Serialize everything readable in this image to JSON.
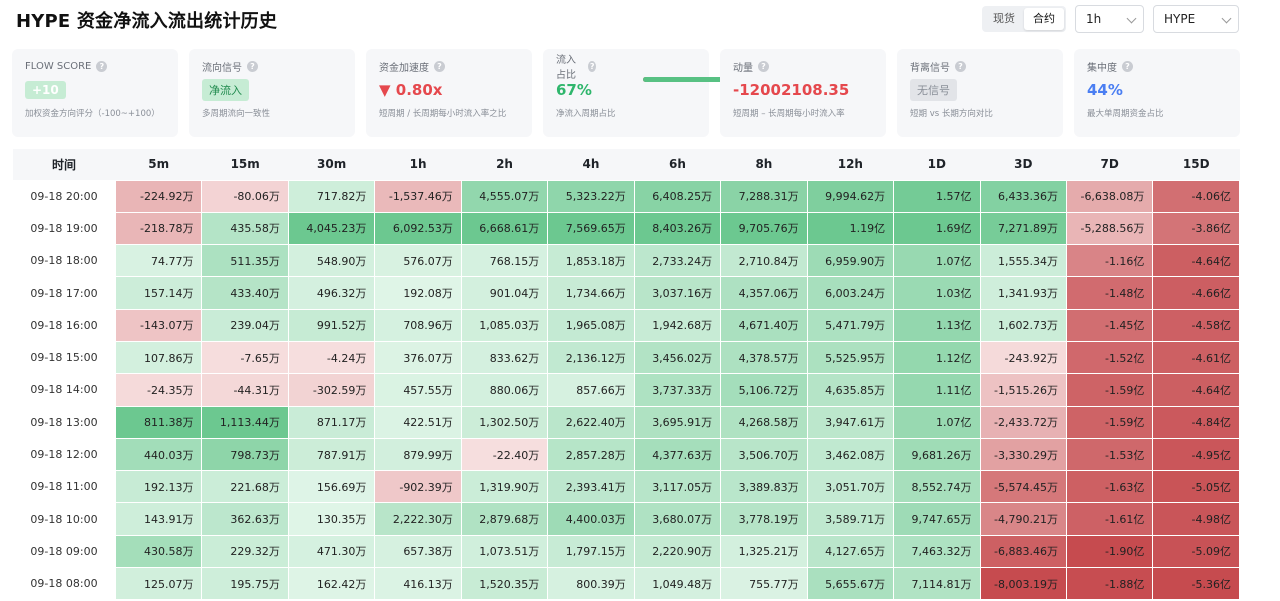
{
  "title": "HYPE 资金净流入流出统计历史",
  "segment": {
    "options": [
      "现货",
      "合约"
    ],
    "active": "合约"
  },
  "interval": "1h",
  "symbol": "HYPE",
  "cards": {
    "flow_score": {
      "title": "FLOW SCORE",
      "value": "+10",
      "sub": "加权资金方向评分（-100~+100）"
    },
    "flow_signal": {
      "title": "流向信号",
      "value": "净流入",
      "sub": "多周期流向一致性"
    },
    "acceleration": {
      "title": "资金加速度",
      "value": "▼ 0.80x",
      "sub": "短周期 / 长周期每小时流入率之比"
    },
    "inflow_ratio": {
      "title": "流入占比",
      "value": "67%",
      "sub": "净流入周期占比",
      "ratio": 0.67
    },
    "momentum": {
      "title": "动量",
      "value": "-12002108.35",
      "sub": "短周期 – 长周期每小时流入率"
    },
    "divergence": {
      "title": "背离信号",
      "value": "无信号",
      "sub": "短期 vs 长期方向对比"
    },
    "concentration": {
      "title": "集中度",
      "value": "44%",
      "sub": "最大单周期资金占比"
    }
  },
  "colors": {
    "positive_light": "#e3f6ea",
    "positive_strong": "#6cc890",
    "negative_light": "#f6dede",
    "negative_strong": "#c64b4f"
  },
  "table": {
    "headers": [
      "时间",
      "5m",
      "15m",
      "30m",
      "1h",
      "2h",
      "4h",
      "6h",
      "8h",
      "12h",
      "1D",
      "3D",
      "7D",
      "15D"
    ],
    "rows": [
      [
        "09-18 20:00",
        "-224.92万",
        "-80.06万",
        "717.82万",
        "-1,537.46万",
        "4,555.07万",
        "5,323.22万",
        "6,408.25万",
        "7,288.31万",
        "9,994.62万",
        "1.57亿",
        "6,433.36万",
        "-6,638.08万",
        "-4.06亿"
      ],
      [
        "09-18 19:00",
        "-218.78万",
        "435.58万",
        "4,045.23万",
        "6,092.53万",
        "6,668.61万",
        "7,569.65万",
        "8,403.26万",
        "9,705.76万",
        "1.19亿",
        "1.69亿",
        "7,271.89万",
        "-5,288.56万",
        "-3.86亿"
      ],
      [
        "09-18 18:00",
        "74.77万",
        "511.35万",
        "548.90万",
        "576.07万",
        "768.15万",
        "1,853.18万",
        "2,733.24万",
        "2,710.84万",
        "6,959.90万",
        "1.07亿",
        "1,555.34万",
        "-1.16亿",
        "-4.64亿"
      ],
      [
        "09-18 17:00",
        "157.14万",
        "433.40万",
        "496.32万",
        "192.08万",
        "901.04万",
        "1,734.66万",
        "3,037.16万",
        "4,357.06万",
        "6,003.24万",
        "1.03亿",
        "1,341.93万",
        "-1.48亿",
        "-4.66亿"
      ],
      [
        "09-18 16:00",
        "-143.07万",
        "239.04万",
        "991.52万",
        "708.96万",
        "1,085.03万",
        "1,965.08万",
        "1,942.68万",
        "4,671.40万",
        "5,471.79万",
        "1.13亿",
        "1,602.73万",
        "-1.45亿",
        "-4.58亿"
      ],
      [
        "09-18 15:00",
        "107.86万",
        "-7.65万",
        "-4.24万",
        "376.07万",
        "833.62万",
        "2,136.12万",
        "3,456.02万",
        "4,378.57万",
        "5,525.95万",
        "1.12亿",
        "-243.92万",
        "-1.52亿",
        "-4.61亿"
      ],
      [
        "09-18 14:00",
        "-24.35万",
        "-44.31万",
        "-302.59万",
        "457.55万",
        "880.06万",
        "857.66万",
        "3,737.33万",
        "5,106.72万",
        "4,635.85万",
        "1.11亿",
        "-1,515.26万",
        "-1.59亿",
        "-4.64亿"
      ],
      [
        "09-18 13:00",
        "811.38万",
        "1,113.44万",
        "871.17万",
        "422.51万",
        "1,302.50万",
        "2,622.40万",
        "3,695.91万",
        "4,268.58万",
        "3,947.61万",
        "1.07亿",
        "-2,433.72万",
        "-1.59亿",
        "-4.84亿"
      ],
      [
        "09-18 12:00",
        "440.03万",
        "798.73万",
        "787.91万",
        "879.99万",
        "-22.40万",
        "2,857.28万",
        "4,377.63万",
        "3,506.70万",
        "3,462.08万",
        "9,681.26万",
        "-3,330.29万",
        "-1.53亿",
        "-4.95亿"
      ],
      [
        "09-18 11:00",
        "192.13万",
        "221.68万",
        "156.69万",
        "-902.39万",
        "1,319.90万",
        "2,393.41万",
        "3,117.05万",
        "3,389.83万",
        "3,051.70万",
        "8,552.74万",
        "-5,574.45万",
        "-1.63亿",
        "-5.05亿"
      ],
      [
        "09-18 10:00",
        "143.91万",
        "362.63万",
        "130.35万",
        "2,222.30万",
        "2,879.68万",
        "4,400.03万",
        "3,680.07万",
        "3,778.19万",
        "3,589.71万",
        "9,747.65万",
        "-4,790.21万",
        "-1.61亿",
        "-4.98亿"
      ],
      [
        "09-18 09:00",
        "430.58万",
        "229.32万",
        "471.30万",
        "657.38万",
        "1,073.51万",
        "1,797.15万",
        "2,220.90万",
        "1,325.21万",
        "4,127.65万",
        "7,463.32万",
        "-6,883.46万",
        "-1.90亿",
        "-5.09亿"
      ],
      [
        "09-18 08:00",
        "125.07万",
        "195.75万",
        "162.42万",
        "416.13万",
        "1,520.35万",
        "800.39万",
        "1,049.48万",
        "755.77万",
        "5,655.67万",
        "7,114.81万",
        "-8,003.19万",
        "-1.88亿",
        "-5.36亿"
      ]
    ]
  }
}
